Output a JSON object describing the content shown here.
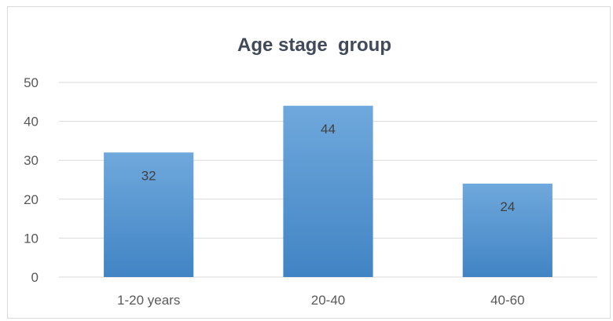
{
  "chart_data": {
    "type": "bar",
    "title": "Age stage  group",
    "categories": [
      "1-20 years",
      "20-40",
      "40-60"
    ],
    "values": [
      32,
      44,
      24
    ],
    "data_labels": [
      "32",
      "44",
      "24"
    ],
    "xlabel": "",
    "ylabel": "",
    "ylim": [
      0,
      50
    ],
    "yticks": [
      "0",
      "10",
      "20",
      "30",
      "40",
      "50"
    ],
    "grid": true,
    "legend": "none",
    "colors": {
      "bar_top": "#6fa8dc",
      "bar_bottom": "#4184c4",
      "grid": "#d9d9d9",
      "axis": "#d9d9d9"
    }
  }
}
